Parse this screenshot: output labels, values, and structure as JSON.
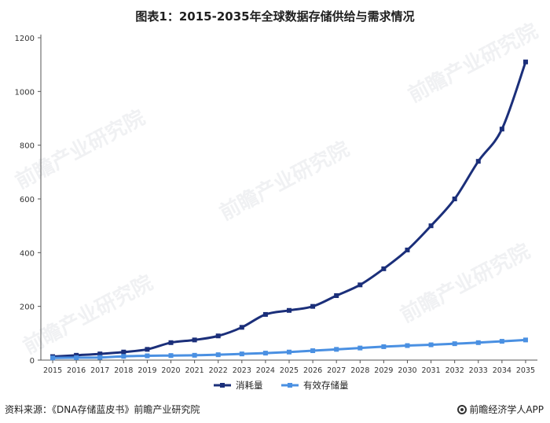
{
  "title": "图表1：2015-2035年全球数据存储供给与需求情况",
  "footer": {
    "source": "资料来源：《DNA存储蓝皮书》前瞻产业研究院",
    "brand": "前瞻经济学人APP"
  },
  "watermark": "前瞻产业研究院",
  "colors": {
    "consumption": "#1b2f7a",
    "effective": "#4a90e2",
    "axis": "#555555",
    "grid": "#e6e6e6"
  },
  "chart_data": {
    "type": "line",
    "title": "图表1：2015-2035年全球数据存储供给与需求情况",
    "xlabel": "",
    "ylabel": "",
    "categories": [
      "2015",
      "2016",
      "2017",
      "2018",
      "2019",
      "2020",
      "2021",
      "2022",
      "2023",
      "2024",
      "2025",
      "2026",
      "2027",
      "2028",
      "2029",
      "2030",
      "2031",
      "2032",
      "2033",
      "2034",
      "2035"
    ],
    "ylim": [
      0,
      1200
    ],
    "yticks": [
      0,
      200,
      400,
      600,
      800,
      1000,
      1200
    ],
    "grid": false,
    "legend_position": "bottom-center",
    "series": [
      {
        "name": "消耗量",
        "color": "#1b2f7a",
        "values": [
          13,
          18,
          23,
          30,
          40,
          65,
          75,
          90,
          122,
          170,
          185,
          200,
          240,
          280,
          340,
          410,
          500,
          600,
          740,
          860,
          1110
        ]
      },
      {
        "name": "有效存储量",
        "color": "#4a90e2",
        "values": [
          8,
          9,
          10,
          14,
          16,
          17,
          18,
          20,
          23,
          26,
          30,
          35,
          40,
          45,
          50,
          54,
          57,
          61,
          65,
          70,
          75
        ]
      }
    ]
  }
}
